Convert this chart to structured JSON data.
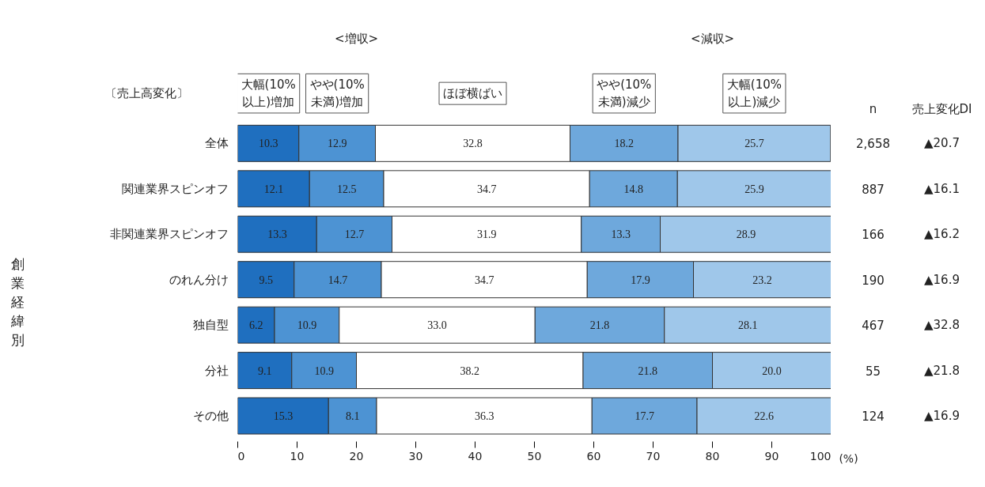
{
  "chart_data": {
    "type": "bar",
    "orientation": "horizontal",
    "stacked": true,
    "grid": false,
    "categories": [
      "全体",
      "関連業界スピンオフ",
      "非関連業界スピンオフ",
      "のれん分け",
      "独自型",
      "分社",
      "その他"
    ],
    "series": [
      {
        "name": "大幅(10%以上)増加",
        "color": "#1f6fbf",
        "values": [
          10.3,
          12.1,
          13.3,
          9.5,
          6.2,
          9.1,
          15.3
        ],
        "value_labels": [
          "10.3",
          "12.1",
          "13.3",
          "9.5",
          "6.2",
          "9.1",
          "15.3"
        ]
      },
      {
        "name": "やや(10%未満)増加",
        "color": "#4d93d3",
        "values": [
          12.9,
          12.5,
          12.7,
          14.7,
          10.9,
          10.9,
          8.1
        ],
        "value_labels": [
          "12.9",
          "12.5",
          "12.7",
          "14.7",
          "10.9",
          "10.9",
          "8.1"
        ]
      },
      {
        "name": "ほぼ横ばい",
        "color": "#ffffff",
        "values": [
          32.8,
          34.7,
          31.9,
          34.7,
          33.0,
          38.2,
          36.3
        ],
        "value_labels": [
          "32.8",
          "34.7",
          "31.9",
          "34.7",
          "33.0",
          "38.2",
          "36.3"
        ]
      },
      {
        "name": "やや(10%未満)減少",
        "color": "#6ea8dc",
        "values": [
          18.2,
          14.8,
          13.3,
          17.9,
          21.8,
          21.8,
          17.7
        ],
        "value_labels": [
          "18.2",
          "14.8",
          "13.3",
          "17.9",
          "21.8",
          "21.8",
          "17.7"
        ]
      },
      {
        "name": "大幅(10%以上)減少",
        "color": "#9fc7ea",
        "values": [
          25.7,
          25.9,
          28.9,
          23.2,
          28.1,
          20.0,
          22.6
        ],
        "value_labels": [
          "25.7",
          "25.9",
          "28.9",
          "23.2",
          "28.1",
          "20.0",
          "22.6"
        ]
      }
    ],
    "xlim": [
      0,
      100
    ],
    "xticks": [
      0,
      10,
      20,
      30,
      40,
      50,
      60,
      70,
      80,
      90,
      100
    ],
    "annotations": [
      "〔売上高変化〕",
      "<増収>",
      "<減収>",
      "n",
      "売上変化DI",
      "(%)",
      "創業経緯別",
      "2,658",
      "887",
      "166",
      "190",
      "467",
      "55",
      "124",
      "▲20.7",
      "▲16.1",
      "▲16.2",
      "▲16.9",
      "▲32.8",
      "▲21.8",
      "▲16.9"
    ]
  }
}
